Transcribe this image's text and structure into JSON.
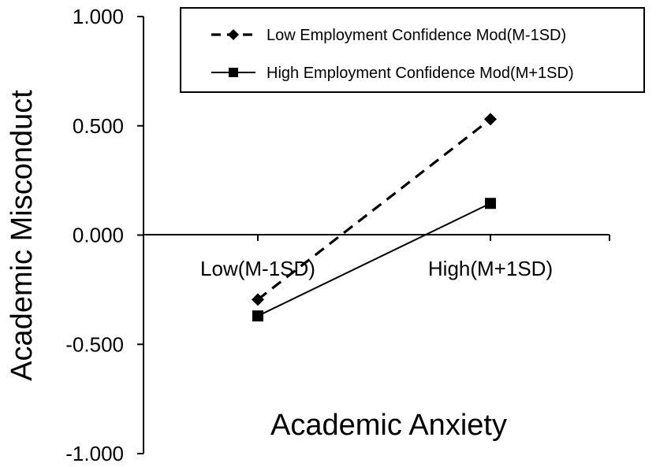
{
  "chart_data": {
    "type": "line",
    "categories": [
      "Low(M-1SD)",
      "High(M+1SD)"
    ],
    "series": [
      {
        "name": "Low Employment Confidence Mod(M-1SD)",
        "values": [
          -0.295,
          0.53
        ],
        "line_style": "dashed",
        "marker": "diamond",
        "color": "#000000"
      },
      {
        "name": "High Employment Confidence Mod(M+1SD)",
        "values": [
          -0.37,
          0.145
        ],
        "line_style": "solid",
        "marker": "square",
        "color": "#000000"
      }
    ],
    "xlabel": "Academic Anxiety",
    "ylabel": "Academic Misconduct",
    "ylim": [
      -1.0,
      1.0
    ],
    "yticks": [
      "1.000",
      "0.500",
      "0.000",
      "-0.500",
      "-1.000"
    ],
    "ytick_values": [
      1.0,
      0.5,
      0.0,
      -0.5,
      -1.0
    ],
    "grid": false,
    "legend_position": "top-right"
  }
}
